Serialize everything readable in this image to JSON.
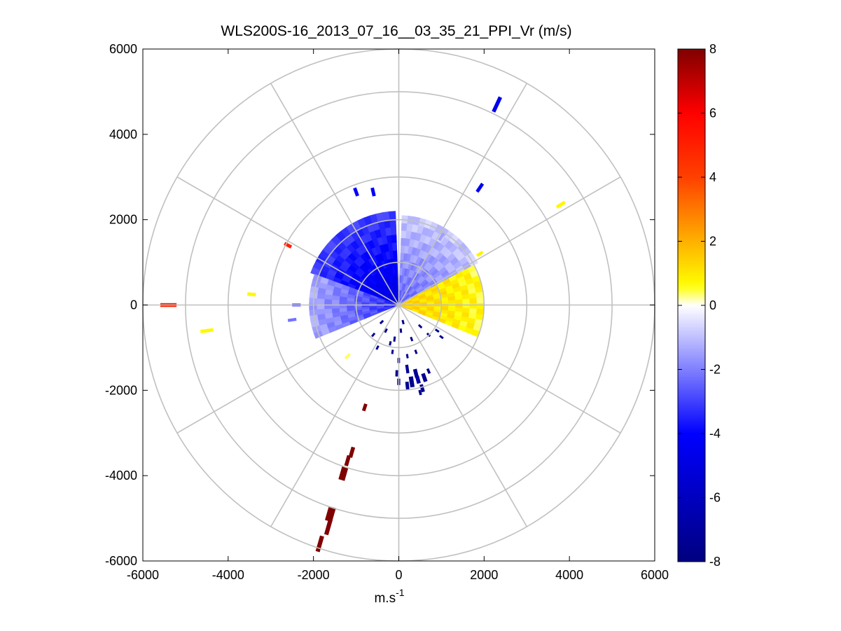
{
  "chart_data": {
    "type": "polar-ppi",
    "title": "WLS200S-16_2013_07_16__03_35_21_PPI_Vr (m/s)",
    "xlabel_base": "m.s",
    "xlabel_exp": "-1",
    "ylabel": "",
    "xlim": [
      -6000,
      6000
    ],
    "ylim": [
      -6000,
      6000
    ],
    "x_ticks": [
      "-6000",
      "-4000",
      "-2000",
      "0",
      "2000",
      "4000",
      "6000"
    ],
    "y_ticks": [
      "6000",
      "4000",
      "2000",
      "0",
      "-2000",
      "-4000",
      "-6000"
    ],
    "polar_grid": {
      "ring_radii": [
        1000,
        2000,
        3000,
        4000,
        5000,
        6000
      ],
      "spoke_angles_deg": [
        0,
        30,
        60,
        90,
        120,
        150,
        180,
        210,
        240,
        270,
        300,
        330
      ],
      "grid_color": "#c0c0c0"
    },
    "colorbar": {
      "range": [
        -8,
        8
      ],
      "ticks": [
        "8",
        "6",
        "4",
        "2",
        "0",
        "-2",
        "-4",
        "-6",
        "-8"
      ],
      "colors_low_to_high": [
        "#000080",
        "#0000ff",
        "#ffffff",
        "#ffff00",
        "#ff0000",
        "#800000"
      ]
    },
    "sectors": [
      {
        "name": "north-west blue sector",
        "az_start": -70,
        "az_end": -2,
        "r_min": 0,
        "r_max": 2200,
        "value_inner": -5.0,
        "value_outer": -3.0
      },
      {
        "name": "north-east light-blue sector",
        "az_start": 2,
        "az_end": 62,
        "r_min": 0,
        "r_max": 2100,
        "value_inner": -2.5,
        "value_outer": -0.8
      },
      {
        "name": "east yellow sector",
        "az_start": 62,
        "az_end": 112,
        "r_min": 0,
        "r_max": 2000,
        "value_inner": 1.5,
        "value_outer": 0.6
      },
      {
        "name": "west-south-west blue fringe",
        "az_start": -112,
        "az_end": -70,
        "r_min": 0,
        "r_max": 2100,
        "value_inner": -3.5,
        "value_outer": -1.3
      }
    ],
    "cells": [
      {
        "x": 2300,
        "y": 4700,
        "az": 25,
        "len": 380,
        "wid": 90,
        "v": -4.5
      },
      {
        "x": 1900,
        "y": 2750,
        "az": 34,
        "len": 230,
        "wid": 80,
        "v": -4.5
      },
      {
        "x": 3800,
        "y": 2350,
        "az": 58,
        "len": 230,
        "wid": 80,
        "v": 0.7
      },
      {
        "x": -1000,
        "y": 2650,
        "az": -20,
        "len": 200,
        "wid": 80,
        "v": -4.2
      },
      {
        "x": -600,
        "y": 2650,
        "az": -13,
        "len": 200,
        "wid": 80,
        "v": -4.2
      },
      {
        "x": 1000,
        "y": 1600,
        "az": 32,
        "len": 200,
        "wid": 70,
        "v": -1.5
      },
      {
        "x": 1200,
        "y": 1600,
        "az": 37,
        "len": 160,
        "wid": 70,
        "v": -0.8
      },
      {
        "x": 1900,
        "y": 1200,
        "az": 57,
        "len": 160,
        "wid": 70,
        "v": 0.8
      },
      {
        "x": -2600,
        "y": 1400,
        "az": -62,
        "len": 180,
        "wid": 80,
        "v": 5.0
      },
      {
        "x": -5400,
        "y": 0,
        "az": -90,
        "len": 380,
        "wid": 90,
        "v": 5.0
      },
      {
        "x": -3450,
        "y": 250,
        "az": -86,
        "len": 200,
        "wid": 80,
        "v": 0.7
      },
      {
        "x": -4500,
        "y": -600,
        "az": -98,
        "len": 300,
        "wid": 80,
        "v": 0.7
      },
      {
        "x": -2400,
        "y": 0,
        "az": -90,
        "len": 200,
        "wid": 70,
        "v": -2.5
      },
      {
        "x": -2500,
        "y": -350,
        "az": -98,
        "len": 200,
        "wid": 70,
        "v": -2.2
      },
      {
        "x": -1200,
        "y": -1200,
        "az": -135,
        "len": 150,
        "wid": 60,
        "v": 0.4
      },
      {
        "x": -800,
        "y": -2400,
        "az": -162,
        "len": 170,
        "wid": 80,
        "v": 8.0
      },
      {
        "x": -1100,
        "y": -3450,
        "az": -164,
        "len": 250,
        "wid": 90,
        "v": 8.0
      },
      {
        "x": -1200,
        "y": -3650,
        "az": -164,
        "len": 250,
        "wid": 90,
        "v": 8.0
      },
      {
        "x": -1300,
        "y": -3950,
        "az": -164,
        "len": 320,
        "wid": 150,
        "v": 8.0
      },
      {
        "x": -1600,
        "y": -4900,
        "az": -164,
        "len": 340,
        "wid": 170,
        "v": 8.0
      },
      {
        "x": -1650,
        "y": -5200,
        "az": -164,
        "len": 380,
        "wid": 100,
        "v": 8.0
      },
      {
        "x": -1850,
        "y": -5600,
        "az": -164,
        "len": 380,
        "wid": 100,
        "v": 8.0
      },
      {
        "x": 200,
        "y": -1500,
        "az": 172,
        "len": 200,
        "wid": 70,
        "v": -7.5
      },
      {
        "x": 400,
        "y": -1600,
        "az": 166,
        "len": 200,
        "wid": 90,
        "v": -7.5
      },
      {
        "x": 600,
        "y": -1700,
        "az": 161,
        "len": 200,
        "wid": 90,
        "v": -7.5
      },
      {
        "x": 300,
        "y": -1800,
        "az": 171,
        "len": 250,
        "wid": 100,
        "v": -7.5
      },
      {
        "x": 450,
        "y": -1750,
        "az": 165,
        "len": 180,
        "wid": 90,
        "v": -6.8
      },
      {
        "x": 200,
        "y": -1900,
        "az": 174,
        "len": 200,
        "wid": 80,
        "v": -7.5
      },
      {
        "x": 550,
        "y": -1950,
        "az": 164,
        "len": 180,
        "wid": 80,
        "v": -7.5
      },
      {
        "x": 0,
        "y": -1800,
        "az": 180,
        "len": 150,
        "wid": 70,
        "v": -7.5
      },
      {
        "x": -50,
        "y": -1600,
        "az": 182,
        "len": 150,
        "wid": 60,
        "v": -7.5
      },
      {
        "x": 700,
        "y": -1550,
        "az": 156,
        "len": 120,
        "wid": 60,
        "v": -7.5
      },
      {
        "x": 500,
        "y": -2050,
        "az": 166,
        "len": 120,
        "wid": 60,
        "v": -7.5
      },
      {
        "x": 0,
        "y": -1300,
        "az": 180,
        "len": 120,
        "wid": 60,
        "v": -7.5
      },
      {
        "x": 200,
        "y": -1200,
        "az": 170,
        "len": 100,
        "wid": 50,
        "v": -7.5
      },
      {
        "x": -100,
        "y": -800,
        "az": 187,
        "len": 120,
        "wid": 50,
        "v": -7.5
      },
      {
        "x": 50,
        "y": -600,
        "az": 175,
        "len": 100,
        "wid": 50,
        "v": -7.5
      },
      {
        "x": 300,
        "y": -800,
        "az": 160,
        "len": 100,
        "wid": 50,
        "v": -7.5
      },
      {
        "x": -400,
        "y": -400,
        "az": 225,
        "len": 100,
        "wid": 50,
        "v": -7.5
      },
      {
        "x": -200,
        "y": -900,
        "az": 192,
        "len": 100,
        "wid": 50,
        "v": -7.5
      },
      {
        "x": -500,
        "y": -1000,
        "az": 207,
        "len": 100,
        "wid": 50,
        "v": -7.5
      },
      {
        "x": 400,
        "y": -1100,
        "az": 160,
        "len": 100,
        "wid": 50,
        "v": -7.5
      },
      {
        "x": 500,
        "y": -500,
        "az": 135,
        "len": 100,
        "wid": 50,
        "v": -7.5
      },
      {
        "x": 700,
        "y": -700,
        "az": 135,
        "len": 100,
        "wid": 50,
        "v": -7.5
      },
      {
        "x": 900,
        "y": -600,
        "az": 124,
        "len": 100,
        "wid": 50,
        "v": -7.5
      },
      {
        "x": 1000,
        "y": -750,
        "az": 127,
        "len": 100,
        "wid": 50,
        "v": -7.5
      },
      {
        "x": -300,
        "y": -600,
        "az": 207,
        "len": 100,
        "wid": 50,
        "v": -7.5
      },
      {
        "x": 100,
        "y": -400,
        "az": 166,
        "len": 100,
        "wid": 50,
        "v": -7.5
      },
      {
        "x": -600,
        "y": -700,
        "az": 220,
        "len": 100,
        "wid": 50,
        "v": -7.5
      },
      {
        "x": -150,
        "y": -1100,
        "az": 188,
        "len": 100,
        "wid": 50,
        "v": -7.5
      }
    ]
  }
}
